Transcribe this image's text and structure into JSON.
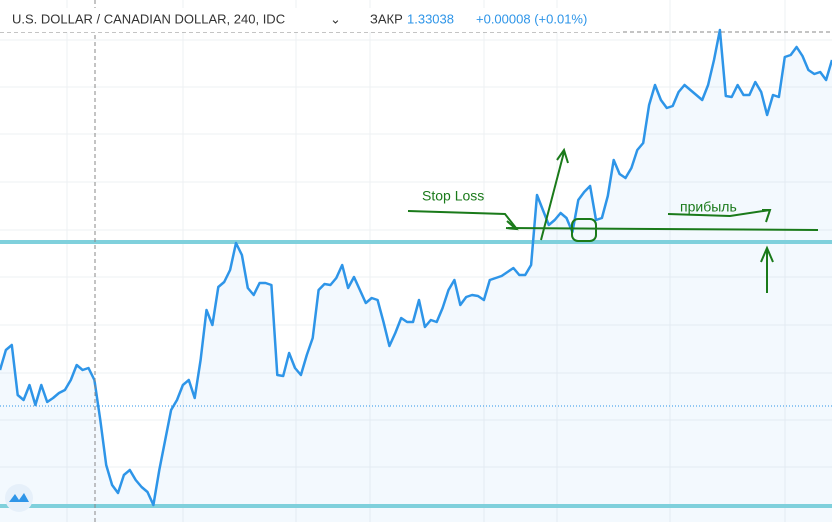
{
  "chart_data": {
    "type": "line",
    "title": "U.S. DOLLAR / CANADIAN DOLLAR, 240, IDC",
    "close_label": "ЗАКР",
    "close_value": "1.33038",
    "change": "+0.00008 (+0.01%)",
    "color": "#2e95e8",
    "ylim": [
      0,
      522
    ],
    "levels": [
      280,
      16
    ],
    "level_color": "#7fd0dc",
    "dotted_level": 116,
    "values": [
      152,
      172,
      177,
      127,
      122,
      137,
      117,
      137,
      120,
      124,
      129,
      132,
      142,
      157,
      152,
      154,
      142,
      102,
      57,
      37,
      29,
      47,
      52,
      42,
      35,
      30,
      17,
      52,
      82,
      112,
      122,
      137,
      142,
      124,
      162,
      212,
      197,
      235,
      240,
      252,
      279,
      267,
      234,
      227,
      239,
      239,
      237,
      147,
      146,
      169,
      154,
      147,
      167,
      184,
      232,
      238,
      237,
      244,
      257,
      234,
      245,
      232,
      219,
      224,
      222,
      200,
      176,
      189,
      204,
      200,
      200,
      222,
      195,
      202,
      200,
      214,
      232,
      242,
      217,
      225,
      227,
      226,
      222,
      242,
      244,
      246,
      250,
      254,
      247,
      247,
      257,
      327,
      312,
      297,
      302,
      309,
      304,
      290,
      322,
      330,
      336,
      302,
      304,
      326,
      362,
      348,
      344,
      354,
      372,
      379,
      417,
      437,
      422,
      414,
      416,
      430,
      437,
      432,
      427,
      422,
      437,
      462,
      492,
      426,
      425,
      437,
      427,
      427,
      440,
      430,
      407,
      427,
      425,
      465,
      467,
      475,
      466,
      452,
      448,
      450,
      442,
      462
    ],
    "annotations": [
      "Stop Loss",
      "прибыль"
    ]
  }
}
